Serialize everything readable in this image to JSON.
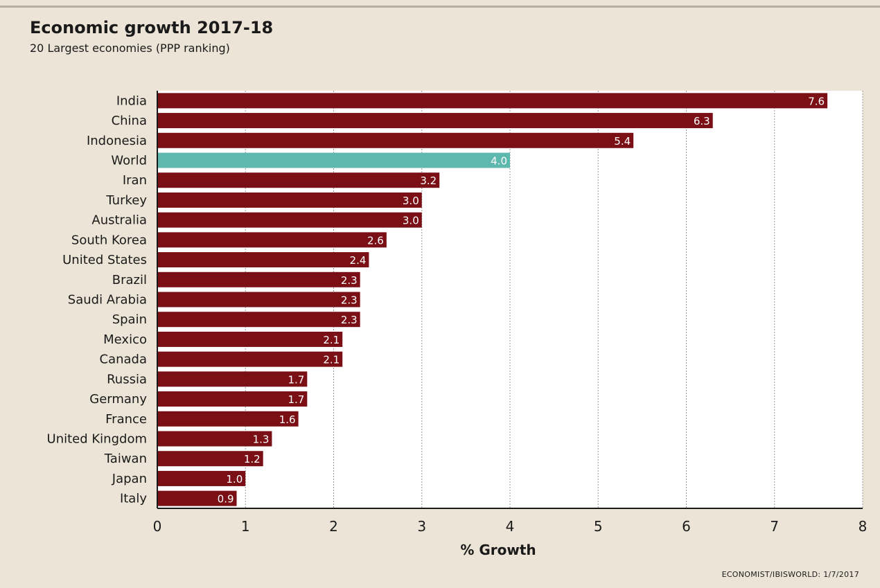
{
  "chart_data": {
    "type": "bar",
    "orientation": "horizontal",
    "title": "Economic growth 2017-18",
    "subtitle": "20 Largest economies (PPP ranking)",
    "xlabel": "% Growth",
    "xlim": [
      0,
      8
    ],
    "xticks": [
      0,
      1,
      2,
      3,
      4,
      5,
      6,
      7,
      8
    ],
    "grid": true,
    "categories": [
      "India",
      "China",
      "Indonesia",
      "World",
      "Iran",
      "Turkey",
      "Australia",
      "South Korea",
      "United States",
      "Brazil",
      "Saudi Arabia",
      "Spain",
      "Mexico",
      "Canada",
      "Russia",
      "Germany",
      "France",
      "United Kingdom",
      "Taiwan",
      "Japan",
      "Italy"
    ],
    "values": [
      7.6,
      6.3,
      5.4,
      4.0,
      3.2,
      3.0,
      3.0,
      2.6,
      2.4,
      2.3,
      2.3,
      2.3,
      2.1,
      2.1,
      1.7,
      1.7,
      1.6,
      1.3,
      1.2,
      1.0,
      0.9
    ],
    "value_labels": [
      "7.6",
      "6.3",
      "5.4",
      "4.0",
      "3.2",
      "3.0",
      "3.0",
      "2.6",
      "2.4",
      "2.3",
      "2.3",
      "2.3",
      "2.1",
      "2.1",
      "1.7",
      "1.7",
      "1.6",
      "1.3",
      "1.2",
      "1.0",
      "0.9"
    ],
    "highlight_category": "World",
    "colors": {
      "bar": "#7a1016",
      "highlight": "#5fb8ad",
      "grid": "#999999",
      "plot_bg": "#ffffff"
    },
    "source": "ECONOMIST/IBISWORLD: 1/7/2017"
  }
}
